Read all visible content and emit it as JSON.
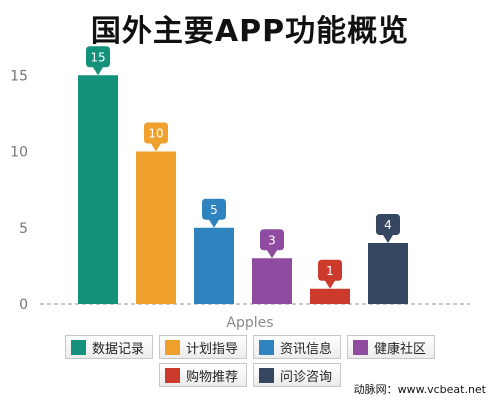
{
  "title": "国外主要APP功能概览",
  "credit": "动脉网：www.vcbeat.net",
  "chart_data": {
    "type": "bar",
    "xlabel": "Apples",
    "ylabel": "",
    "ylim": [
      0,
      16
    ],
    "yticks": [
      0,
      5,
      10,
      15
    ],
    "grid": false,
    "legend_position": "bottom",
    "categories": [
      "数据记录",
      "计划指导",
      "资讯信息",
      "健康社区",
      "购物推荐",
      "问诊咨询"
    ],
    "values": [
      15,
      10,
      5,
      3,
      1,
      4
    ],
    "colors": [
      "#14917a",
      "#f0a02c",
      "#2f84c0",
      "#8e4ba0",
      "#cc3a2b",
      "#344660"
    ]
  }
}
